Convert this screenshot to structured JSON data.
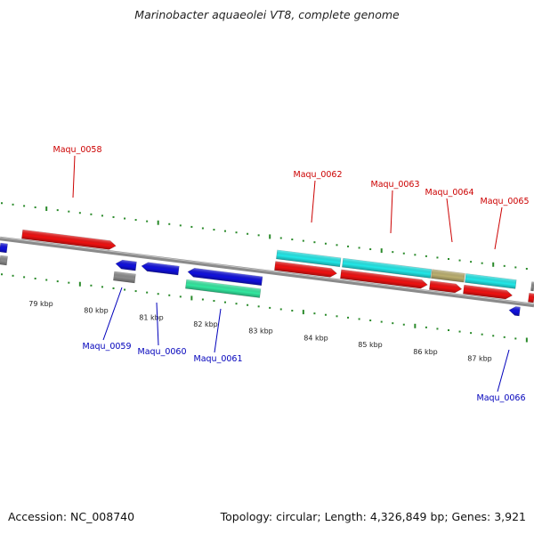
{
  "title": "Marinobacter aquaeolei VT8, complete genome",
  "footer": {
    "accession": "Accession: NC_008740",
    "summary": "Topology: circular; Length: 4,326,849 bp; Genes: 3,921"
  },
  "colors": {
    "backbone": "#8a8a8a",
    "tick": "#2a8a2a",
    "forward_label": "#cc0000",
    "reverse_label": "#0000bb",
    "red": "#ee1111",
    "blue": "#1111dd",
    "cyan": "#22e8e8",
    "gray": "#8c8c8c",
    "spring": "#33e8a0",
    "khaki": "#bcb070"
  },
  "scale": {
    "labels": [
      "79 kbp",
      "80 kbp",
      "81 kbp",
      "82 kbp",
      "83 kbp",
      "84 kbp",
      "85 kbp",
      "86 kbp",
      "87 kbp"
    ]
  },
  "gene_labels": {
    "forward": [
      "Maqu_0058",
      "Maqu_0062",
      "Maqu_0063",
      "Maqu_0064",
      "Maqu_0065"
    ],
    "reverse": [
      "Maqu_0059",
      "Maqu_0060",
      "Maqu_0061",
      "Maqu_0066"
    ]
  }
}
